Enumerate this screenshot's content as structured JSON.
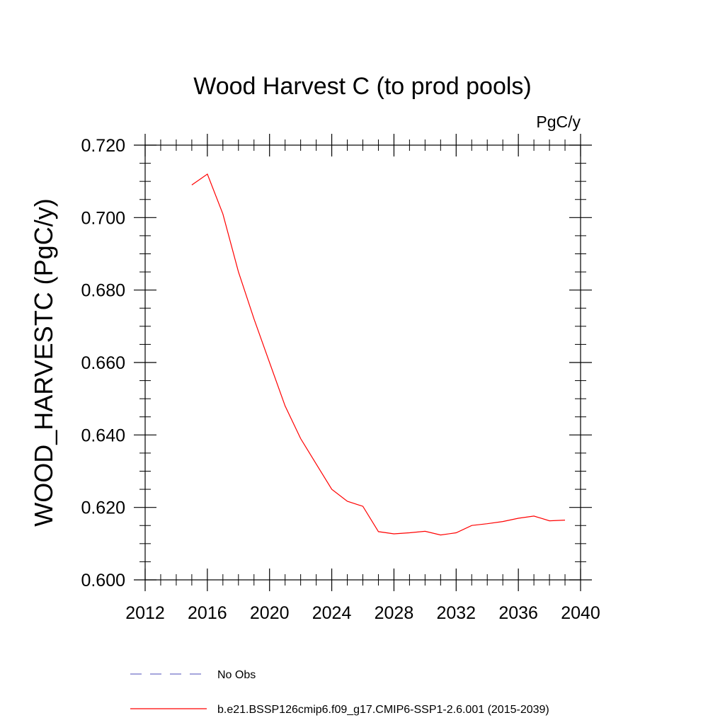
{
  "chart_data": {
    "type": "line",
    "title": "Wood Harvest C (to prod pools)",
    "units_label": "PgC/y",
    "ylabel": "WOOD_HARVESTC  (PgC/y)",
    "xlabel": "",
    "xlim": [
      2012,
      2040
    ],
    "ylim": [
      0.6,
      0.72
    ],
    "x_ticks": [
      2012,
      2016,
      2020,
      2024,
      2028,
      2032,
      2036,
      2040
    ],
    "x_tick_labels": [
      "2012",
      "2016",
      "2020",
      "2024",
      "2028",
      "2032",
      "2036",
      "2040"
    ],
    "y_ticks": [
      0.6,
      0.62,
      0.64,
      0.66,
      0.68,
      0.7,
      0.72
    ],
    "y_tick_labels": [
      "0.600",
      "0.620",
      "0.640",
      "0.660",
      "0.680",
      "0.700",
      "0.720"
    ],
    "grid": false,
    "legend_position": "bottom",
    "series": [
      {
        "name": "b.e21.BSSP126cmip6.f09_g17.CMIP6-SSP1-2.6.001 (2015-2039)",
        "color": "#ff0000",
        "style": "solid",
        "x": [
          2015,
          2016,
          2017,
          2018,
          2019,
          2020,
          2021,
          2022,
          2023,
          2024,
          2025,
          2026,
          2027,
          2028,
          2029,
          2030,
          2031,
          2032,
          2033,
          2034,
          2035,
          2036,
          2037,
          2038,
          2039
        ],
        "values": [
          0.709,
          0.712,
          0.701,
          0.685,
          0.672,
          0.66,
          0.648,
          0.639,
          0.632,
          0.625,
          0.6217,
          0.6203,
          0.6133,
          0.6127,
          0.613,
          0.6134,
          0.6124,
          0.613,
          0.615,
          0.6155,
          0.6161,
          0.617,
          0.6176,
          0.6163,
          0.6165
        ]
      }
    ],
    "legend": [
      {
        "label": "No Obs",
        "color": "#7070c8",
        "style": "dashed"
      },
      {
        "label": "b.e21.BSSP126cmip6.f09_g17.CMIP6-SSP1-2.6.001 (2015-2039)",
        "color": "#ff0000",
        "style": "solid"
      }
    ]
  }
}
